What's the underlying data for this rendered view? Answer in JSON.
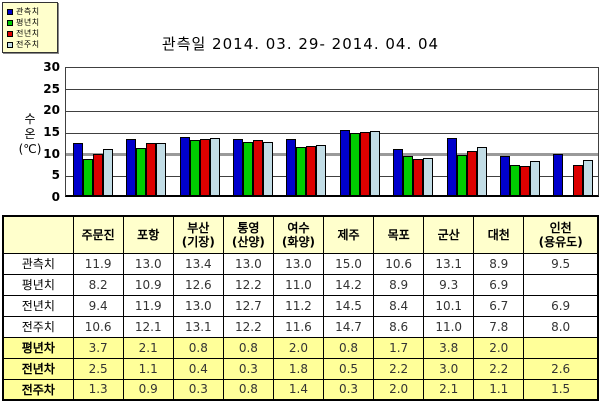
{
  "title": "관측일 2014. 03. 29-  2014. 04. 04",
  "legend": {
    "items": [
      {
        "label": "관측치",
        "color": "#0000cc"
      },
      {
        "label": "평년치",
        "color": "#00cc00"
      },
      {
        "label": "전년치",
        "color": "#dd0000"
      },
      {
        "label": "전주치",
        "color": "#c2dde6"
      }
    ]
  },
  "chart_data": {
    "type": "bar",
    "title": "관측일 2014. 03. 29-  2014. 04. 04",
    "ylabel": "수온(℃)",
    "ylabel_display": "수\n온\n(℃)",
    "ylim": [
      0,
      30
    ],
    "yticks": [
      0,
      5,
      10,
      15,
      20,
      25,
      30
    ],
    "emphasized_gridline": 10,
    "grid": true,
    "legend_position": "top-left",
    "categories": [
      "주문진",
      "포항",
      "부산(기장)",
      "통영(산양)",
      "여수(화양)",
      "제주",
      "목포",
      "군산",
      "대천",
      "인천(용유도)"
    ],
    "series": [
      {
        "name": "관측치",
        "color": "#0000cc",
        "values": [
          11.9,
          13.0,
          13.4,
          13.0,
          13.0,
          15.0,
          10.6,
          13.1,
          8.9,
          9.5
        ]
      },
      {
        "name": "평년치",
        "color": "#00cc00",
        "values": [
          8.2,
          10.9,
          12.6,
          12.2,
          11.0,
          14.2,
          8.9,
          9.3,
          6.9,
          null
        ]
      },
      {
        "name": "전년치",
        "color": "#dd0000",
        "values": [
          9.4,
          11.9,
          13.0,
          12.7,
          11.2,
          14.5,
          8.4,
          10.1,
          6.7,
          6.9
        ]
      },
      {
        "name": "전주치",
        "color": "#c2dde6",
        "values": [
          10.6,
          12.1,
          13.1,
          12.2,
          11.6,
          14.7,
          8.6,
          11.0,
          7.8,
          8.0
        ]
      }
    ]
  },
  "table": {
    "header": [
      "",
      "주문진",
      "포항",
      "부산\n(기장)",
      "통영\n(산양)",
      "여수\n(화양)",
      "제주",
      "목포",
      "군산",
      "대천",
      "인천\n(용유도)"
    ],
    "rows": [
      {
        "label": "관측치",
        "highlight": false,
        "values": [
          "11.9",
          "13.0",
          "13.4",
          "13.0",
          "13.0",
          "15.0",
          "10.6",
          "13.1",
          "8.9",
          "9.5"
        ]
      },
      {
        "label": "평년치",
        "highlight": false,
        "values": [
          "8.2",
          "10.9",
          "12.6",
          "12.2",
          "11.0",
          "14.2",
          "8.9",
          "9.3",
          "6.9",
          ""
        ]
      },
      {
        "label": "전년치",
        "highlight": false,
        "values": [
          "9.4",
          "11.9",
          "13.0",
          "12.7",
          "11.2",
          "14.5",
          "8.4",
          "10.1",
          "6.7",
          "6.9"
        ]
      },
      {
        "label": "전주치",
        "highlight": false,
        "values": [
          "10.6",
          "12.1",
          "13.1",
          "12.2",
          "11.6",
          "14.7",
          "8.6",
          "11.0",
          "7.8",
          "8.0"
        ]
      },
      {
        "label": "평년차",
        "highlight": true,
        "values": [
          "3.7",
          "2.1",
          "0.8",
          "0.8",
          "2.0",
          "0.8",
          "1.7",
          "3.8",
          "2.0",
          ""
        ]
      },
      {
        "label": "전년차",
        "highlight": true,
        "values": [
          "2.5",
          "1.1",
          "0.4",
          "0.3",
          "1.8",
          "0.5",
          "2.2",
          "3.0",
          "2.2",
          "2.6"
        ]
      },
      {
        "label": "전주차",
        "highlight": true,
        "values": [
          "1.3",
          "0.9",
          "0.3",
          "0.8",
          "1.4",
          "0.3",
          "2.0",
          "2.1",
          "1.1",
          "1.5"
        ]
      }
    ]
  },
  "colors": {
    "panel_yellow": "#ffffcc",
    "highlight_yellow": "#ffff99",
    "grid_emphasis": "#9a9a9a"
  }
}
